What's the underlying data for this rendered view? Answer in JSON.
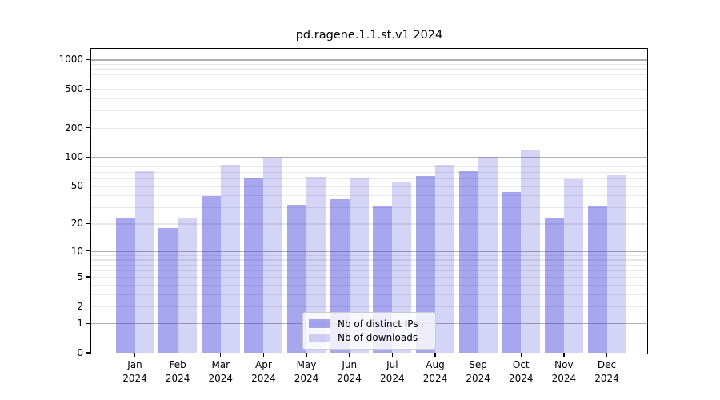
{
  "chart_data": {
    "type": "bar",
    "title": "pd.ragene.1.1.st.v1 2024",
    "categories": [
      "Jan",
      "Feb",
      "Mar",
      "Apr",
      "May",
      "Jun",
      "Jul",
      "Aug",
      "Sep",
      "Oct",
      "Nov",
      "Dec"
    ],
    "year": "2024",
    "series": [
      {
        "name": "Nb of distinct IPs",
        "color_hex": "#a7a7ef",
        "fill_rgba": "rgba(60,60,220,0.45)",
        "values": [
          23,
          18,
          39,
          60,
          32,
          36,
          31,
          64,
          71,
          43,
          23,
          31
        ]
      },
      {
        "name": "Nb of downloads",
        "color_hex": "#d4d4f7",
        "fill_rgba": "rgba(60,60,220,0.22)",
        "values": [
          71,
          23,
          83,
          96,
          62,
          61,
          56,
          83,
          101,
          120,
          59,
          65
        ]
      }
    ],
    "yscale": "log1p",
    "yticks": [
      0,
      1,
      2,
      5,
      10,
      20,
      50,
      100,
      200,
      500,
      1000
    ],
    "ylim": [
      0,
      1290
    ],
    "grid": "both",
    "grid_major_color": "#b0b0b0",
    "grid_minor_color": "#e8e8e8",
    "legend_position": "lower-center"
  }
}
